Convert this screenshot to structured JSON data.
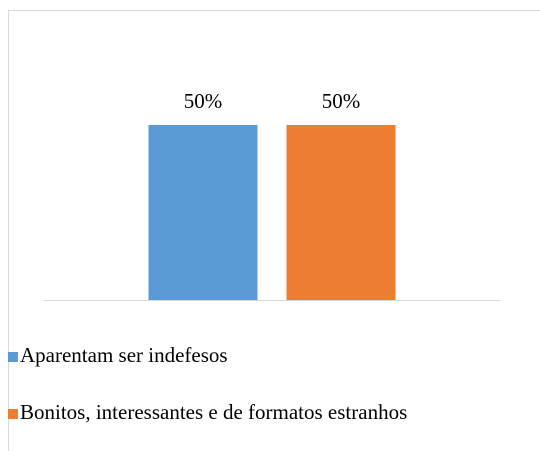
{
  "chart_data": {
    "type": "bar",
    "categories": [
      null
    ],
    "series": [
      {
        "name": "Aparentam ser indefesos",
        "color": "#5b9bd5",
        "values": [
          50
        ],
        "value_labels": [
          "50%"
        ]
      },
      {
        "name": "Bonitos, interessantes e de formatos estranhos",
        "color": "#ed7d31",
        "values": [
          50
        ],
        "value_labels": [
          "50%"
        ]
      }
    ],
    "ylim": [
      0,
      60
    ],
    "legend": "bottom"
  }
}
